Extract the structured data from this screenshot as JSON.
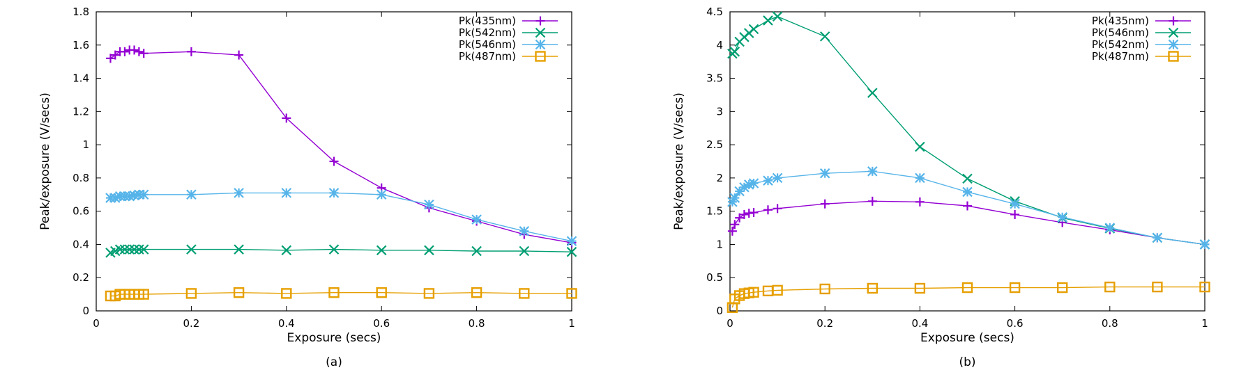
{
  "colors": {
    "purple": "#9400d3",
    "green": "#009e73",
    "lightblue": "#56b4e9",
    "orange": "#e69f00"
  },
  "chart_data": [
    {
      "type": "line",
      "caption": "(a)",
      "xlabel": "Exposure (secs)",
      "ylabel": "Peak/exposure (V/secs)",
      "xlim": [
        0,
        1
      ],
      "ylim": [
        0,
        1.8
      ],
      "xticks": [
        0,
        0.2,
        0.4,
        0.6,
        0.8,
        1
      ],
      "xtick_labels": [
        "0",
        "0.2",
        "0.4",
        "0.6",
        "0.8",
        "1"
      ],
      "yticks": [
        0,
        0.2,
        0.4,
        0.6,
        0.8,
        1,
        1.2,
        1.4,
        1.6,
        1.8
      ],
      "ytick_labels": [
        "0",
        "0.2",
        "0.4",
        "0.6",
        "0.8",
        "1",
        "1.2",
        "1.4",
        "1.6",
        "1.8"
      ],
      "grid": false,
      "legend_position": "top-right",
      "series": [
        {
          "name": "Pk(435nm)",
          "color": "purple",
          "marker": "plus",
          "x": [
            0.03,
            0.04,
            0.05,
            0.06,
            0.07,
            0.08,
            0.09,
            0.1,
            0.2,
            0.3,
            0.4,
            0.5,
            0.6,
            0.7,
            0.8,
            0.9,
            1.0
          ],
          "y": [
            1.52,
            1.54,
            1.56,
            1.56,
            1.57,
            1.57,
            1.56,
            1.55,
            1.56,
            1.54,
            1.16,
            0.9,
            0.74,
            0.62,
            0.54,
            0.46,
            0.41
          ]
        },
        {
          "name": "Pk(542nm)",
          "color": "green",
          "marker": "cross",
          "x": [
            0.03,
            0.04,
            0.05,
            0.06,
            0.07,
            0.08,
            0.09,
            0.1,
            0.2,
            0.3,
            0.4,
            0.5,
            0.6,
            0.7,
            0.8,
            0.9,
            1.0
          ],
          "y": [
            0.35,
            0.36,
            0.37,
            0.37,
            0.37,
            0.37,
            0.37,
            0.37,
            0.37,
            0.37,
            0.365,
            0.37,
            0.365,
            0.365,
            0.36,
            0.36,
            0.355
          ]
        },
        {
          "name": "Pk(546nm)",
          "color": "lightblue",
          "marker": "star",
          "x": [
            0.03,
            0.04,
            0.05,
            0.06,
            0.07,
            0.08,
            0.09,
            0.1,
            0.2,
            0.3,
            0.4,
            0.5,
            0.6,
            0.7,
            0.8,
            0.9,
            1.0
          ],
          "y": [
            0.68,
            0.68,
            0.69,
            0.69,
            0.69,
            0.695,
            0.7,
            0.7,
            0.7,
            0.71,
            0.71,
            0.71,
            0.7,
            0.64,
            0.55,
            0.48,
            0.42
          ]
        },
        {
          "name": "Pk(487nm)",
          "color": "orange",
          "marker": "square",
          "x": [
            0.03,
            0.04,
            0.05,
            0.06,
            0.07,
            0.08,
            0.09,
            0.1,
            0.2,
            0.3,
            0.4,
            0.5,
            0.6,
            0.7,
            0.8,
            0.9,
            1.0
          ],
          "y": [
            0.09,
            0.09,
            0.1,
            0.1,
            0.1,
            0.1,
            0.1,
            0.1,
            0.105,
            0.11,
            0.105,
            0.11,
            0.11,
            0.105,
            0.11,
            0.105,
            0.105
          ]
        }
      ]
    },
    {
      "type": "line",
      "caption": "(b)",
      "xlabel": "Exposure (secs)",
      "ylabel": "Peak/exposure (V/secs)",
      "xlim": [
        0,
        1
      ],
      "ylim": [
        0,
        4.5
      ],
      "xticks": [
        0,
        0.2,
        0.4,
        0.6,
        0.8,
        1
      ],
      "xtick_labels": [
        "0",
        "0.2",
        "0.4",
        "0.6",
        "0.8",
        "1"
      ],
      "yticks": [
        0,
        0.5,
        1,
        1.5,
        2,
        2.5,
        3,
        3.5,
        4,
        4.5
      ],
      "ytick_labels": [
        "0",
        "0.5",
        "1",
        "1.5",
        "2",
        "2.5",
        "3",
        "3.5",
        "4",
        "4.5"
      ],
      "grid": false,
      "legend_position": "top-right",
      "series": [
        {
          "name": "Pk(435nm)",
          "color": "purple",
          "marker": "plus",
          "x": [
            0.005,
            0.01,
            0.02,
            0.03,
            0.04,
            0.05,
            0.08,
            0.1,
            0.2,
            0.3,
            0.4,
            0.5,
            0.6,
            0.7,
            0.8,
            0.9,
            1.0
          ],
          "y": [
            1.2,
            1.3,
            1.4,
            1.45,
            1.47,
            1.48,
            1.52,
            1.54,
            1.61,
            1.65,
            1.64,
            1.58,
            1.45,
            1.33,
            1.22,
            1.1,
            1.0
          ]
        },
        {
          "name": "Pk(546nm)",
          "color": "green",
          "marker": "cross",
          "x": [
            0.005,
            0.01,
            0.02,
            0.03,
            0.04,
            0.05,
            0.08,
            0.1,
            0.2,
            0.3,
            0.4,
            0.5,
            0.6,
            0.7,
            0.8,
            0.9,
            1.0
          ],
          "y": [
            3.87,
            3.9,
            4.05,
            4.12,
            4.18,
            4.24,
            4.37,
            4.43,
            4.13,
            3.28,
            2.47,
            1.99,
            1.65,
            1.4,
            1.24,
            1.1,
            1.0
          ]
        },
        {
          "name": "Pk(542nm)",
          "color": "lightblue",
          "marker": "star",
          "x": [
            0.005,
            0.01,
            0.02,
            0.03,
            0.04,
            0.05,
            0.08,
            0.1,
            0.2,
            0.3,
            0.4,
            0.5,
            0.6,
            0.7,
            0.8,
            0.9,
            1.0
          ],
          "y": [
            1.64,
            1.7,
            1.8,
            1.86,
            1.9,
            1.92,
            1.96,
            2.0,
            2.07,
            2.1,
            2.0,
            1.79,
            1.61,
            1.41,
            1.25,
            1.1,
            1.0
          ]
        },
        {
          "name": "Pk(487nm)",
          "color": "orange",
          "marker": "square",
          "x": [
            0.005,
            0.01,
            0.02,
            0.03,
            0.04,
            0.05,
            0.08,
            0.1,
            0.2,
            0.3,
            0.4,
            0.5,
            0.6,
            0.7,
            0.8,
            0.9,
            1.0
          ],
          "y": [
            0.05,
            0.18,
            0.23,
            0.26,
            0.27,
            0.28,
            0.3,
            0.31,
            0.33,
            0.34,
            0.34,
            0.35,
            0.35,
            0.35,
            0.36,
            0.36,
            0.36
          ]
        }
      ]
    }
  ]
}
